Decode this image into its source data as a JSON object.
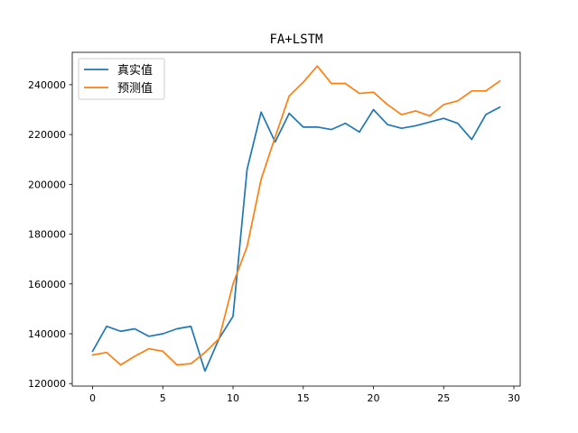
{
  "chart_data": {
    "type": "line",
    "title": "FA+LSTM",
    "xlabel": "",
    "ylabel": "",
    "x": [
      0,
      1,
      2,
      3,
      4,
      5,
      6,
      7,
      8,
      9,
      10,
      11,
      12,
      13,
      14,
      15,
      16,
      17,
      18,
      19,
      20,
      21,
      22,
      23,
      24,
      25,
      26,
      27,
      28,
      29
    ],
    "xlim": [
      -1.45,
      30.45
    ],
    "ylim": [
      119000,
      253000
    ],
    "xticks": [
      0,
      5,
      10,
      15,
      20,
      25,
      30
    ],
    "yticks": [
      120000,
      140000,
      160000,
      180000,
      200000,
      220000,
      240000
    ],
    "grid": false,
    "legend": "top-left",
    "series": [
      {
        "name": "真实值",
        "color": "#1f77b4",
        "values": [
          133000,
          143000,
          141000,
          142000,
          139000,
          140000,
          142000,
          143000,
          125000,
          138000,
          147000,
          206000,
          229000,
          217000,
          228500,
          223000,
          223000,
          222000,
          224500,
          221000,
          230000,
          224000,
          222500,
          223500,
          225000,
          226500,
          224500,
          218000,
          228000,
          231000
        ]
      },
      {
        "name": "预测值",
        "color": "#ff7f0e",
        "values": [
          131500,
          132500,
          127500,
          131000,
          134000,
          133000,
          127500,
          128000,
          132500,
          138000,
          160000,
          175000,
          202000,
          219000,
          235500,
          241000,
          247500,
          240500,
          240500,
          236500,
          237000,
          232000,
          228000,
          229500,
          227500,
          232000,
          233500,
          237500,
          237500,
          241500
        ]
      }
    ]
  }
}
